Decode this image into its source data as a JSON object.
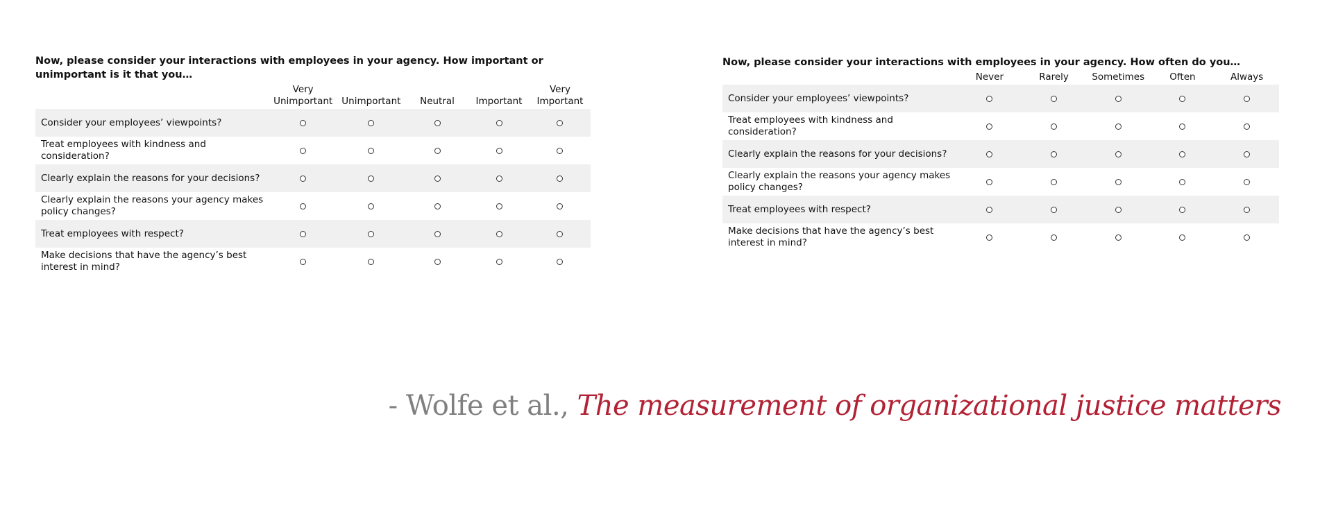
{
  "surveys": [
    {
      "question": "Now, please consider your interactions with employees in your agency. How important or unimportant is it that you…",
      "scale": [
        [
          "Very",
          "Unimportant"
        ],
        [
          "",
          "Unimportant"
        ],
        [
          "",
          "Neutral"
        ],
        [
          "",
          "Important"
        ],
        [
          "Very",
          "Important"
        ]
      ],
      "items": [
        [
          "Consider your employees’ viewpoints?"
        ],
        [
          "Treat employees with kindness and",
          "consideration?"
        ],
        [
          "Clearly explain the reasons for your decisions?"
        ],
        [
          "Clearly explain the reasons your agency makes",
          "policy changes?"
        ],
        [
          "Treat employees with respect?"
        ],
        [
          "Make decisions that have the agency’s best",
          "interest in mind?"
        ]
      ]
    },
    {
      "question": "Now, please consider your interactions with employees in your agency. How often do you…",
      "scale": [
        [
          "",
          "Never"
        ],
        [
          "",
          "Rarely"
        ],
        [
          "",
          "Sometimes"
        ],
        [
          "",
          "Often"
        ],
        [
          "",
          "Always"
        ]
      ],
      "items": [
        [
          "Consider your employees’ viewpoints?"
        ],
        [
          "Treat employees with kindness and",
          "consideration?"
        ],
        [
          "Clearly explain the reasons for your decisions?"
        ],
        [
          "Clearly explain the reasons your agency makes",
          "policy changes?"
        ],
        [
          "Treat employees with respect?"
        ],
        [
          "Make decisions that have the agency’s best",
          "interest in mind?"
        ]
      ]
    }
  ],
  "citation": {
    "author": "- Wolfe et al., ",
    "work": "The measurement of organizational justice matters"
  },
  "colors": {
    "row_shade": "#f0f0f0",
    "author": "#808080",
    "work_title": "#b22234"
  },
  "icons": {
    "option": "radio-button-icon"
  }
}
